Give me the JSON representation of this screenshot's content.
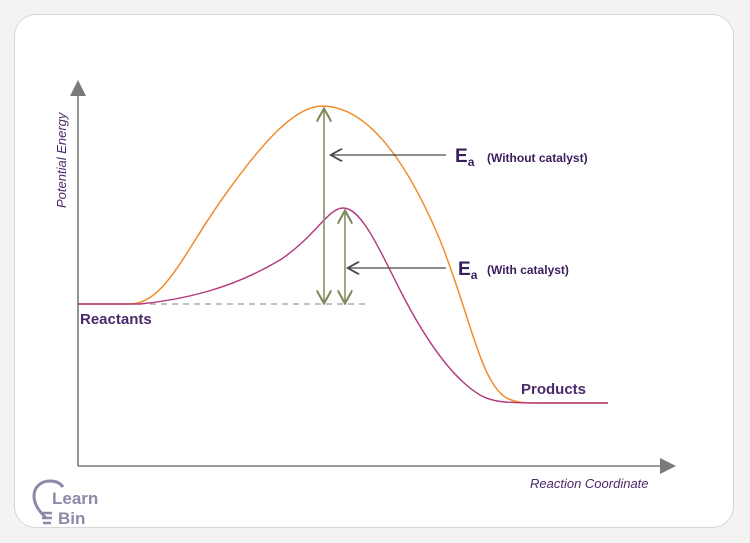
{
  "diagram": {
    "y_axis_label": "Potential Energy",
    "x_axis_label": "Reaction Coordinate",
    "reactants_label": "Reactants",
    "products_label": "Products",
    "ea_symbol": "E",
    "ea_subscript": "a",
    "ea_without_note": "(Without catalyst)",
    "ea_with_note": "(With catalyst)"
  },
  "logo": {
    "line1": "Learn",
    "line2": "Bin"
  },
  "colors": {
    "uncatalyzed_curve": "#f28b2a",
    "catalyzed_curve": "#b03a7a",
    "ea_arrow": "#7d8a5a",
    "pointer_arrow": "#4a4a4a",
    "axis": "#7a7a7a",
    "text": "#4a2a6a"
  }
}
